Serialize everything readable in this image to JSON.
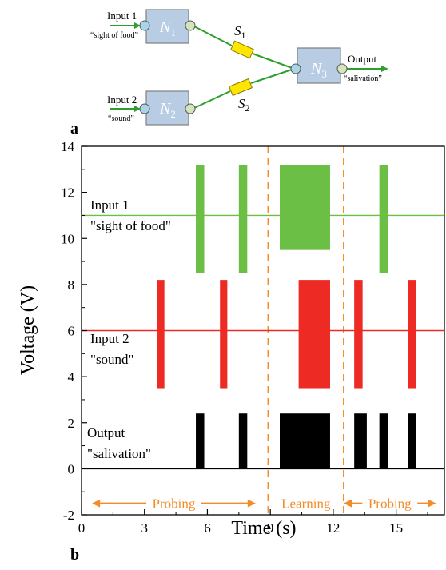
{
  "diagram": {
    "panel_label": "a",
    "nodes": [
      {
        "id": "N1",
        "letter": "N",
        "sub": "1"
      },
      {
        "id": "N2",
        "letter": "N",
        "sub": "2"
      },
      {
        "id": "N3",
        "letter": "N",
        "sub": "3"
      }
    ],
    "synapses": [
      {
        "id": "S1",
        "letter": "S",
        "sub": "1"
      },
      {
        "id": "S2",
        "letter": "S",
        "sub": "2"
      }
    ],
    "inputs": [
      {
        "label": "Input 1",
        "desc": "“sight of food”"
      },
      {
        "label": "Input 2",
        "desc": "“sound”"
      }
    ],
    "output": {
      "label": "Output",
      "desc": "“salivation”"
    },
    "colors": {
      "node_fill": "#b8cce4",
      "node_stroke": "#7f7f7f",
      "port_in": "#a9d5ea",
      "port_out": "#d6e4bc",
      "wire": "#2ca02c",
      "synapse": "#ffe600"
    }
  },
  "chart_data": {
    "type": "line",
    "panel_label": "b",
    "xlabel": "Time (s)",
    "ylabel": "Voltage (V)",
    "xlim": [
      0,
      17.3
    ],
    "ylim": [
      -2,
      14
    ],
    "xticks": [
      0,
      3,
      6,
      9,
      12,
      15
    ],
    "yticks": [
      -2,
      0,
      2,
      4,
      6,
      8,
      10,
      12,
      14
    ],
    "series": [
      {
        "name": "Input 1",
        "desc": "\"sight of food\"",
        "color": "#6bbf45",
        "baseline": 11,
        "pulses": [
          {
            "start": 5.45,
            "end": 5.85,
            "low": 8.5,
            "high": 13.2
          },
          {
            "start": 7.5,
            "end": 7.9,
            "low": 8.5,
            "high": 13.2
          },
          {
            "start": 9.45,
            "end": 11.85,
            "low": 9.5,
            "high": 13.2
          },
          {
            "start": 14.2,
            "end": 14.6,
            "low": 8.5,
            "high": 13.2
          }
        ]
      },
      {
        "name": "Input 2",
        "desc": "\"sound\"",
        "color": "#ee2a24",
        "baseline": 6,
        "pulses": [
          {
            "start": 3.6,
            "end": 3.95,
            "low": 3.5,
            "high": 8.2
          },
          {
            "start": 6.6,
            "end": 6.95,
            "low": 3.5,
            "high": 8.2
          },
          {
            "start": 10.35,
            "end": 11.85,
            "low": 3.5,
            "high": 8.2
          },
          {
            "start": 13.0,
            "end": 13.4,
            "low": 3.5,
            "high": 8.2
          },
          {
            "start": 15.55,
            "end": 15.95,
            "low": 3.5,
            "high": 8.2
          }
        ]
      },
      {
        "name": "Output",
        "desc": "\"salivation\"",
        "color": "#000000",
        "baseline": 0,
        "pulses": [
          {
            "start": 5.45,
            "end": 5.85,
            "low": 0,
            "high": 2.4
          },
          {
            "start": 7.5,
            "end": 7.9,
            "low": 0,
            "high": 2.4
          },
          {
            "start": 9.45,
            "end": 11.85,
            "low": 0,
            "high": 2.4
          },
          {
            "start": 13.0,
            "end": 13.6,
            "low": 0,
            "high": 2.4
          },
          {
            "start": 14.2,
            "end": 14.6,
            "low": 0,
            "high": 2.4
          },
          {
            "start": 15.55,
            "end": 15.95,
            "low": 0,
            "high": 2.4
          }
        ]
      }
    ],
    "phase_lines": [
      8.9,
      12.5
    ],
    "phase_line_color": "#f28c28",
    "phases": [
      {
        "label": "Probing",
        "from": 0.5,
        "to": 8.3,
        "y": -1.5
      },
      {
        "label": "Learning",
        "from": 8.9,
        "to": 12.5,
        "y": -1.5
      },
      {
        "label": "Probing",
        "from": 12.5,
        "to": 16.9,
        "y": -1.5
      }
    ]
  }
}
